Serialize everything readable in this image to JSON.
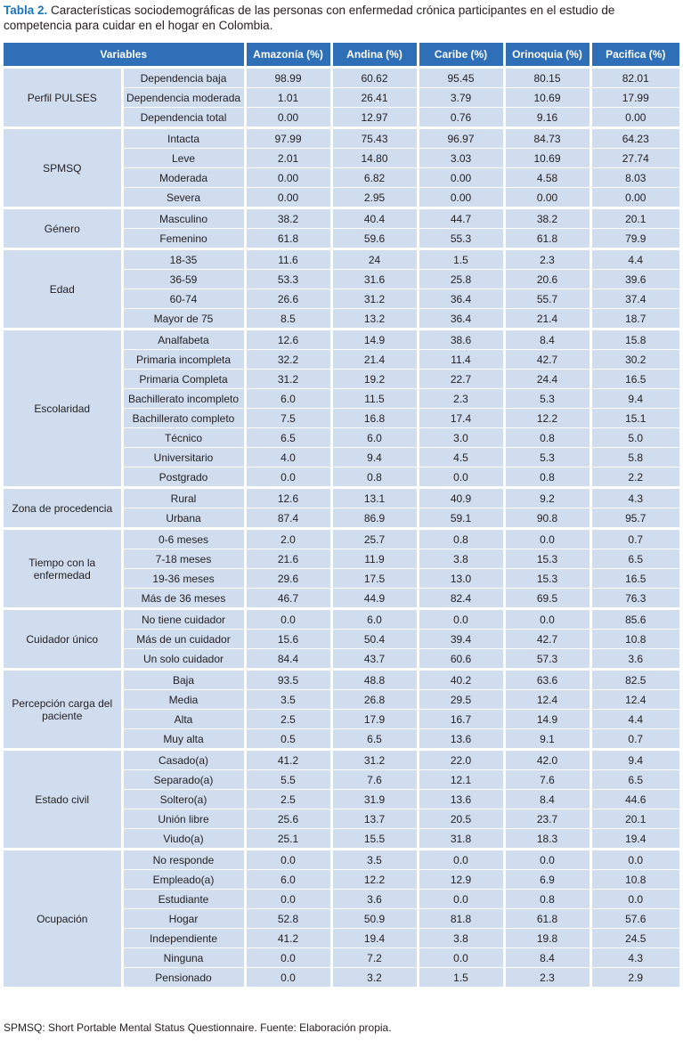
{
  "caption": {
    "label": "Tabla 2.",
    "text": "Características sociodemográficas de las personas con enfermedad crónica participantes en el estudio de competencia para cuidar en el hogar en Colombia."
  },
  "table": {
    "header": [
      "Variables",
      "Amazonía (%)",
      "Andina (%)",
      "Caribe (%)",
      "Orinoquia (%)",
      "Pacifica (%)"
    ],
    "groups": [
      {
        "label": "Perfil PULSES",
        "rows": [
          {
            "label": "Dependencia baja",
            "values": [
              "98.99",
              "60.62",
              "95.45",
              "80.15",
              "82.01"
            ]
          },
          {
            "label": "Dependencia moderada",
            "values": [
              "1.01",
              "26.41",
              "3.79",
              "10.69",
              "17.99"
            ]
          },
          {
            "label": "Dependencia total",
            "values": [
              "0.00",
              "12.97",
              "0.76",
              "9.16",
              "0.00"
            ]
          }
        ]
      },
      {
        "label": "SPMSQ",
        "rows": [
          {
            "label": "Intacta",
            "values": [
              "97.99",
              "75.43",
              "96.97",
              "84.73",
              "64.23"
            ]
          },
          {
            "label": "Leve",
            "values": [
              "2.01",
              "14.80",
              "3.03",
              "10.69",
              "27.74"
            ]
          },
          {
            "label": "Moderada",
            "values": [
              "0.00",
              "6.82",
              "0.00",
              "4.58",
              "8.03"
            ]
          },
          {
            "label": "Severa",
            "values": [
              "0.00",
              "2.95",
              "0.00",
              "0.00",
              "0.00"
            ]
          }
        ]
      },
      {
        "label": "Género",
        "rows": [
          {
            "label": "Masculino",
            "values": [
              "38.2",
              "40.4",
              "44.7",
              "38.2",
              "20.1"
            ]
          },
          {
            "label": "Femenino",
            "values": [
              "61.8",
              "59.6",
              "55.3",
              "61.8",
              "79.9"
            ]
          }
        ]
      },
      {
        "label": "Edad",
        "rows": [
          {
            "label": "18-35",
            "values": [
              "11.6",
              "24",
              "1.5",
              "2.3",
              "4.4"
            ]
          },
          {
            "label": "36-59",
            "values": [
              "53.3",
              "31.6",
              "25.8",
              "20.6",
              "39.6"
            ]
          },
          {
            "label": "60-74",
            "values": [
              "26.6",
              "31.2",
              "36.4",
              "55.7",
              "37.4"
            ]
          },
          {
            "label": "Mayor de 75",
            "values": [
              "8.5",
              "13.2",
              "36.4",
              "21.4",
              "18.7"
            ]
          }
        ]
      },
      {
        "label": "Escolaridad",
        "rows": [
          {
            "label": "Analfabeta",
            "values": [
              "12.6",
              "14.9",
              "38.6",
              "8.4",
              "15.8"
            ]
          },
          {
            "label": "Primaria incompleta",
            "values": [
              "32.2",
              "21.4",
              "11.4",
              "42.7",
              "30.2"
            ]
          },
          {
            "label": "Primaria Completa",
            "values": [
              "31.2",
              "19.2",
              "22.7",
              "24.4",
              "16.5"
            ]
          },
          {
            "label": "Bachillerato incompleto",
            "values": [
              "6.0",
              "11.5",
              "2.3",
              "5.3",
              "9.4"
            ]
          },
          {
            "label": "Bachillerato completo",
            "values": [
              "7.5",
              "16.8",
              "17.4",
              "12.2",
              "15.1"
            ]
          },
          {
            "label": "Técnico",
            "values": [
              "6.5",
              "6.0",
              "3.0",
              "0.8",
              "5.0"
            ]
          },
          {
            "label": "Universitario",
            "values": [
              "4.0",
              "9.4",
              "4.5",
              "5.3",
              "5.8"
            ]
          },
          {
            "label": "Postgrado",
            "values": [
              "0.0",
              "0.8",
              "0.0",
              "0.8",
              "2.2"
            ]
          }
        ]
      },
      {
        "label": "Zona de procedencia",
        "rows": [
          {
            "label": "Rural",
            "values": [
              "12.6",
              "13.1",
              "40.9",
              "9.2",
              "4.3"
            ]
          },
          {
            "label": "Urbana",
            "values": [
              "87.4",
              "86.9",
              "59.1",
              "90.8",
              "95.7"
            ]
          }
        ]
      },
      {
        "label": "Tiempo con la enfermedad",
        "rows": [
          {
            "label": "0-6 meses",
            "values": [
              "2.0",
              "25.7",
              "0.8",
              "0.0",
              "0.7"
            ]
          },
          {
            "label": "7-18 meses",
            "values": [
              "21.6",
              "11.9",
              "3.8",
              "15.3",
              "6.5"
            ]
          },
          {
            "label": "19-36 meses",
            "values": [
              "29.6",
              "17.5",
              "13.0",
              "15.3",
              "16.5"
            ]
          },
          {
            "label": "Más de 36 meses",
            "values": [
              "46.7",
              "44.9",
              "82.4",
              "69.5",
              "76.3"
            ]
          }
        ]
      },
      {
        "label": "Cuidador único",
        "rows": [
          {
            "label": "No tiene cuidador",
            "values": [
              "0.0",
              "6.0",
              "0.0",
              "0.0",
              "85.6"
            ]
          },
          {
            "label": "Más de un cuidador",
            "values": [
              "15.6",
              "50.4",
              "39.4",
              "42.7",
              "10.8"
            ]
          },
          {
            "label": "Un solo cuidador",
            "values": [
              "84.4",
              "43.7",
              "60.6",
              "57.3",
              "3.6"
            ]
          }
        ]
      },
      {
        "label": "Percepción carga del paciente",
        "rows": [
          {
            "label": "Baja",
            "values": [
              "93.5",
              "48.8",
              "40.2",
              "63.6",
              "82.5"
            ]
          },
          {
            "label": "Media",
            "values": [
              "3.5",
              "26.8",
              "29.5",
              "12.4",
              "12.4"
            ]
          },
          {
            "label": "Alta",
            "values": [
              "2.5",
              "17.9",
              "16.7",
              "14.9",
              "4.4"
            ]
          },
          {
            "label": "Muy alta",
            "values": [
              "0.5",
              "6.5",
              "13.6",
              "9.1",
              "0.7"
            ]
          }
        ]
      },
      {
        "label": "Estado civil",
        "rows": [
          {
            "label": "Casado(a)",
            "values": [
              "41.2",
              "31.2",
              "22.0",
              "42.0",
              "9.4"
            ]
          },
          {
            "label": "Separado(a)",
            "values": [
              "5.5",
              "7.6",
              "12.1",
              "7.6",
              "6.5"
            ]
          },
          {
            "label": "Soltero(a)",
            "values": [
              "2.5",
              "31.9",
              "13.6",
              "8.4",
              "44.6"
            ]
          },
          {
            "label": "Unión libre",
            "values": [
              "25.6",
              "13.7",
              "20.5",
              "23.7",
              "20.1"
            ]
          },
          {
            "label": "Viudo(a)",
            "values": [
              "25.1",
              "15.5",
              "31.8",
              "18.3",
              "19.4"
            ]
          }
        ]
      },
      {
        "label": "Ocupación",
        "rows": [
          {
            "label": "No responde",
            "values": [
              "0.0",
              "3.5",
              "0.0",
              "0.0",
              "0.0"
            ]
          },
          {
            "label": "Empleado(a)",
            "values": [
              "6.0",
              "12.2",
              "12.9",
              "6.9",
              "10.8"
            ]
          },
          {
            "label": "Estudiante",
            "values": [
              "0.0",
              "3.6",
              "0.0",
              "0.8",
              "0.0"
            ]
          },
          {
            "label": "Hogar",
            "values": [
              "52.8",
              "50.9",
              "81.8",
              "61.8",
              "57.6"
            ]
          },
          {
            "label": "Independiente",
            "values": [
              "41.2",
              "19.4",
              "3.8",
              "19.8",
              "24.5"
            ]
          },
          {
            "label": "Ninguna",
            "values": [
              "0.0",
              "7.2",
              "0.0",
              "8.4",
              "4.3"
            ]
          },
          {
            "label": "Pensionado",
            "values": [
              "0.0",
              "3.2",
              "1.5",
              "2.3",
              "2.9"
            ]
          }
        ]
      }
    ]
  },
  "footnote": "SPMSQ: Short Portable Mental Status Questionnaire. Fuente: Elaboración propia."
}
